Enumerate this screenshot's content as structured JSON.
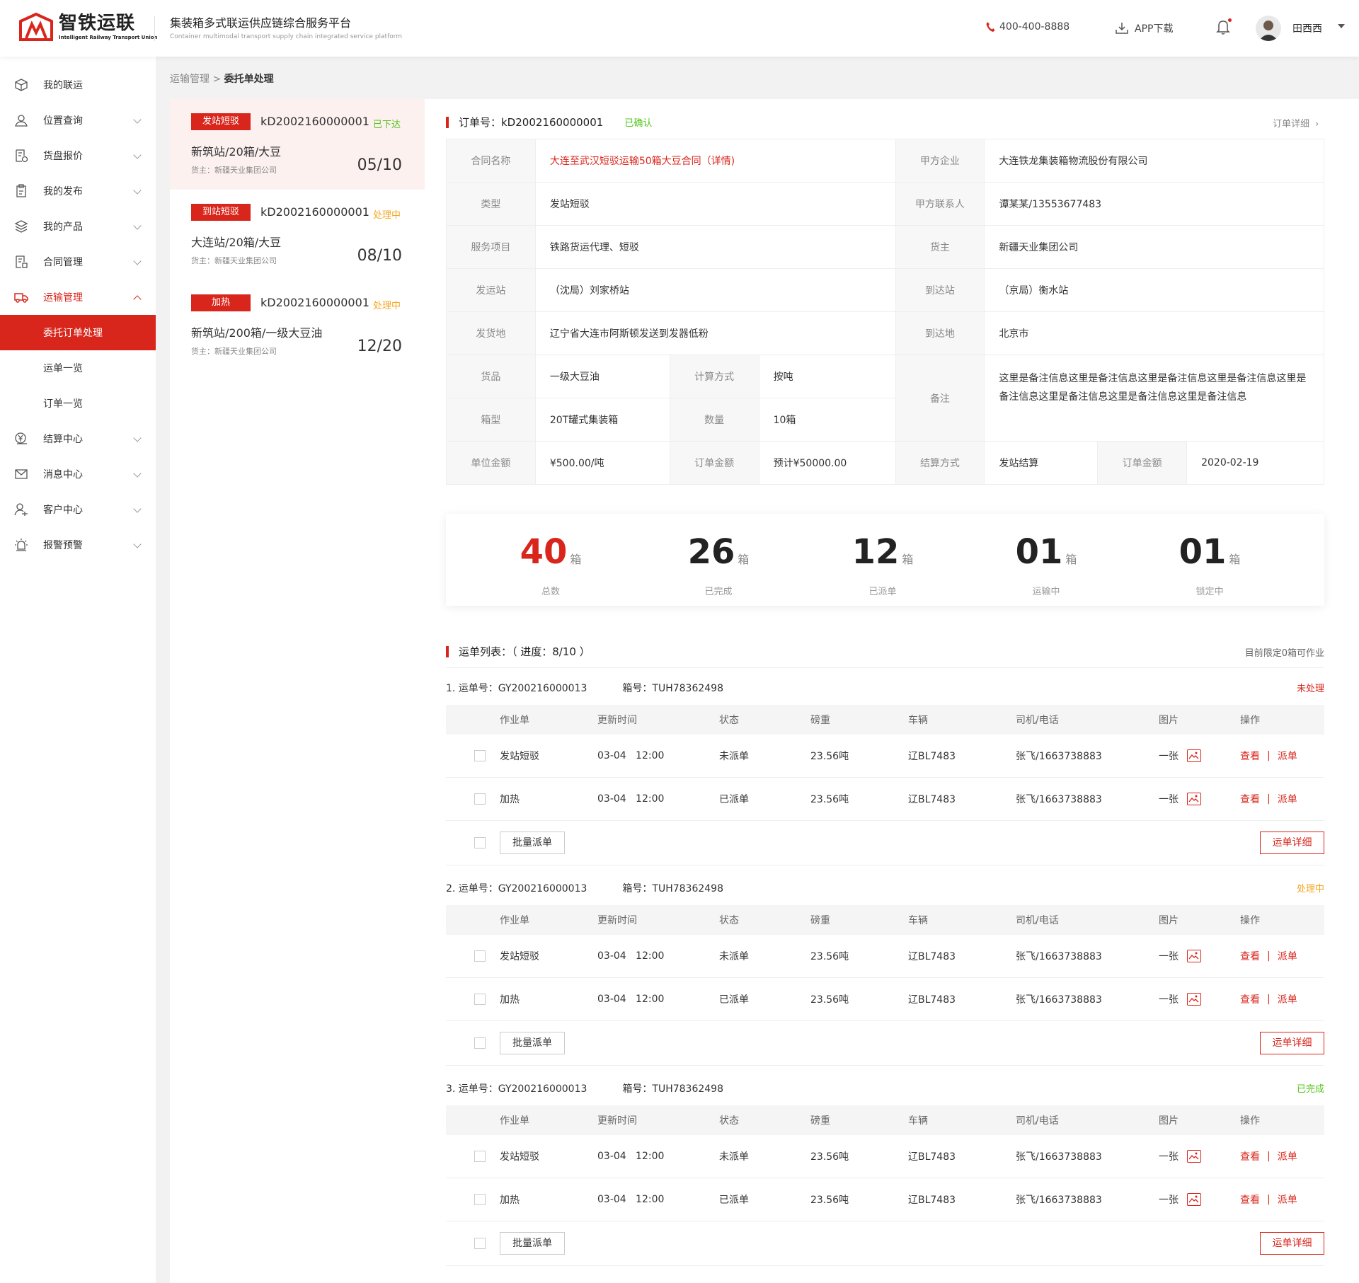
{
  "header": {
    "logo_cn": "智铁运联",
    "logo_en": "Intelligent Railway Transport Union",
    "title": "集装箱多式联运供应链综合服务平台",
    "subtitle": "Container multimodal transport supply chain integrated service platform",
    "phone": "400-400-8888",
    "app_download": "APP下载",
    "user_name": "田西西"
  },
  "sidebar": {
    "items": [
      {
        "label": "我的联运",
        "icon": "cube-icon"
      },
      {
        "label": "位置查询",
        "icon": "map-pin-icon"
      },
      {
        "label": "货盘报价",
        "icon": "quote-doc-icon"
      },
      {
        "label": "我的发布",
        "icon": "clipboard-icon"
      },
      {
        "label": "我的产品",
        "icon": "layers-icon"
      },
      {
        "label": "合同管理",
        "icon": "contract-icon"
      },
      {
        "label": "运输管理",
        "icon": "truck-icon"
      },
      {
        "label": "结算中心",
        "icon": "yen-coin-icon"
      },
      {
        "label": "消息中心",
        "icon": "envelope-icon"
      },
      {
        "label": "客户中心",
        "icon": "customer-icon"
      },
      {
        "label": "报警预警",
        "icon": "alarm-icon"
      }
    ],
    "subitems": [
      "委托订单处理",
      "运单一览",
      "订单一览"
    ]
  },
  "breadcrumb": {
    "parent": "运输管理",
    "sep": ">",
    "current": "委托单处理"
  },
  "orders": [
    {
      "tag": "发站短驳",
      "no": "kD2002160000001",
      "status": "已下达",
      "status_color": "#52c41a",
      "route": "新筑站/20箱/大豆",
      "owner": "货主：新疆天业集团公司",
      "count": "05/10"
    },
    {
      "tag": "到站短驳",
      "no": "kD2002160000001",
      "status": "处理中",
      "status_color": "#f5a623",
      "route": "大连站/20箱/大豆",
      "owner": "货主：新疆天业集团公司",
      "count": "08/10"
    },
    {
      "tag": "加热",
      "no": "kD2002160000001",
      "status": "处理中",
      "status_color": "#f5a623",
      "route": "新筑站/200箱/一级大豆油",
      "owner": "货主：新疆天业集团公司",
      "count": "12/20"
    }
  ],
  "detail": {
    "order_label": "订单号：kD2002160000001",
    "order_status": "已确认",
    "detail_link": "订单详细",
    "info": {
      "contract_name_k": "合同名称",
      "contract_name_v": "大连至武汉短驳运输50箱大豆合同（详情)",
      "party_a_k": "甲方企业",
      "party_a_v": "大连铁龙集装箱物流股份有限公司",
      "type_k": "类型",
      "type_v": "发站短驳",
      "contact_k": "甲方联系人",
      "contact_v": "谭某某/13553677483",
      "service_k": "服务项目",
      "service_v": "铁路货运代理、短驳",
      "owner_k": "货主",
      "owner_v": "新疆天业集团公司",
      "from_station_k": "发运站",
      "from_station_v": "（沈局）刘家桥站",
      "to_station_k": "到达站",
      "to_station_v": "（京局）衡水站",
      "from_place_k": "发货地",
      "from_place_v": "辽宁省大连市阿斯顿发送到发器低粉",
      "to_place_k": "到达地",
      "to_place_v": "北京市",
      "goods_k": "货品",
      "goods_v": "一级大豆油",
      "calc_k": "计算方式",
      "calc_v": "按吨",
      "remark_k": "备注",
      "remark_v": "这里是备注信息这里是备注信息这里是备注信息这里是备注信息这里是备注信息这里是备注信息这里是备注信息这里是备注信息",
      "box_k": "箱型",
      "box_v": "20T罐式集装箱",
      "qty_k": "数量",
      "qty_v": "10箱",
      "unit_k": "单位金额",
      "unit_v": "¥500.00/吨",
      "amount_k": "订单金额",
      "amount_v": "预计¥50000.00",
      "settle_k": "结算方式",
      "settle_v": "发站结算",
      "amount2_k": "订单金额",
      "amount2_v": "2020-02-19"
    }
  },
  "stats": [
    {
      "num": "40",
      "unit": "箱",
      "label": "总数",
      "color": "#d9261c"
    },
    {
      "num": "26",
      "unit": "箱",
      "label": "已完成",
      "color": "#222"
    },
    {
      "num": "12",
      "unit": "箱",
      "label": "已派单",
      "color": "#222"
    },
    {
      "num": "01",
      "unit": "箱",
      "label": "运输中",
      "color": "#222"
    },
    {
      "num": "01",
      "unit": "箱",
      "label": "锁定中",
      "color": "#222"
    }
  ],
  "waybill": {
    "title": "运单列表：（ 进度：8/10 ）",
    "limit_note": "目前限定0箱可作业",
    "columns": [
      "作业单",
      "更新时间",
      "状态",
      "磅重",
      "车辆",
      "司机/电话",
      "图片",
      "操作"
    ],
    "view_label": "查看",
    "sep": "|",
    "dispatch_label": "派单",
    "batch_label": "批量派单",
    "detail_label": "运单详细",
    "groups": [
      {
        "header": "1. 运单号：GY200216000013",
        "box": "箱号：TUH78362498",
        "status": "未处理",
        "status_color": "#d9261c",
        "rows": [
          {
            "job": "发站短驳",
            "time": "03-04   12:00",
            "state": "未派单",
            "weight": "23.56吨",
            "vehicle": "辽BL7483",
            "driver": "张飞/1663738883",
            "pic": "一张"
          },
          {
            "job": "加热",
            "time": "03-04   12:00",
            "state": "已派单",
            "weight": "23.56吨",
            "vehicle": "辽BL7483",
            "driver": "张飞/1663738883",
            "pic": "一张"
          }
        ]
      },
      {
        "header": "2. 运单号：GY200216000013",
        "box": "箱号：TUH78362498",
        "status": "处理中",
        "status_color": "#f5a623",
        "rows": [
          {
            "job": "发站短驳",
            "time": "03-04   12:00",
            "state": "未派单",
            "weight": "23.56吨",
            "vehicle": "辽BL7483",
            "driver": "张飞/1663738883",
            "pic": "一张"
          },
          {
            "job": "加热",
            "time": "03-04   12:00",
            "state": "已派单",
            "weight": "23.56吨",
            "vehicle": "辽BL7483",
            "driver": "张飞/1663738883",
            "pic": "一张"
          }
        ]
      },
      {
        "header": "3. 运单号：GY200216000013",
        "box": "箱号：TUH78362498",
        "status": "已完成",
        "status_color": "#52c41a",
        "rows": [
          {
            "job": "发站短驳",
            "time": "03-04   12:00",
            "state": "未派单",
            "weight": "23.56吨",
            "vehicle": "辽BL7483",
            "driver": "张飞/1663738883",
            "pic": "一张"
          },
          {
            "job": "加热",
            "time": "03-04   12:00",
            "state": "已派单",
            "weight": "23.56吨",
            "vehicle": "辽BL7483",
            "driver": "张飞/1663738883",
            "pic": "一张"
          }
        ]
      }
    ]
  }
}
